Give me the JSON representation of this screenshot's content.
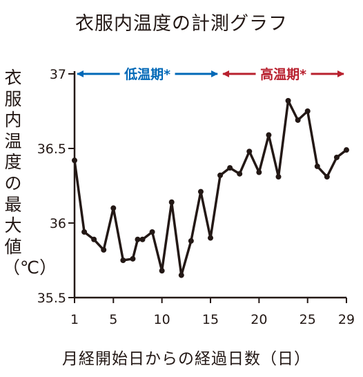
{
  "chart_data": {
    "type": "line",
    "title": "衣服内温度の計測グラフ",
    "xlabel": "月経開始日からの経過日数（日）",
    "ylabel": "衣服内温度の最大値（℃）",
    "xlim": [
      1,
      29
    ],
    "ylim": [
      35.5,
      37
    ],
    "x_ticks": [
      1,
      5,
      10,
      15,
      20,
      25,
      29
    ],
    "y_ticks": [
      35.5,
      36,
      36.5,
      37
    ],
    "grid": false,
    "series": [
      {
        "x": [
          1,
          2,
          3,
          4,
          5,
          6,
          7,
          7.5,
          8,
          9,
          10,
          11,
          12,
          13,
          14,
          15,
          16,
          17,
          18,
          19,
          20,
          21,
          22,
          23,
          24,
          25,
          26,
          27,
          28,
          29
        ],
        "y": [
          36.42,
          35.94,
          35.89,
          35.82,
          36.1,
          35.75,
          35.76,
          35.89,
          35.89,
          35.94,
          35.68,
          36.14,
          35.65,
          35.88,
          36.21,
          35.9,
          36.32,
          36.37,
          36.33,
          36.48,
          36.34,
          36.59,
          36.31,
          36.82,
          36.69,
          36.75,
          36.38,
          36.31,
          36.44,
          36.49
        ],
        "color": "#231815"
      }
    ],
    "annotations": [
      {
        "label": "低温期*",
        "x_start": 1,
        "x_end": 16,
        "color": "#0068b7"
      },
      {
        "label": "高温期*",
        "x_start": 16,
        "x_end": 29,
        "color": "#b8202e"
      }
    ]
  }
}
